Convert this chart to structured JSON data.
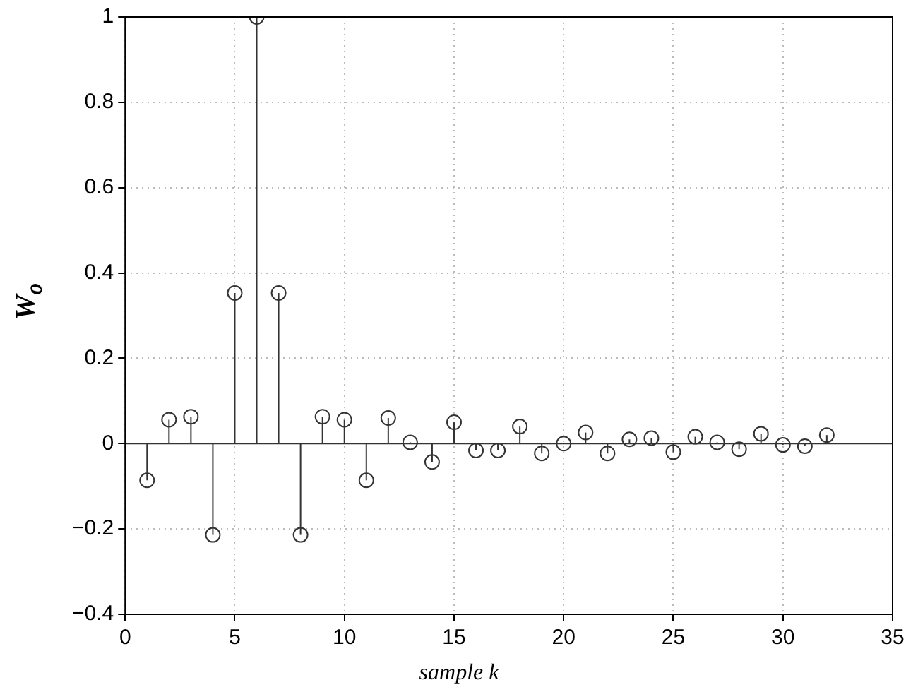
{
  "chart_data": {
    "type": "lollipop",
    "xlabel": "sample k",
    "ylabel": "W$_{o}$",
    "x": [
      1,
      2,
      3,
      4,
      5,
      6,
      7,
      8,
      9,
      10,
      11,
      12,
      13,
      14,
      15,
      16,
      17,
      18,
      19,
      20,
      21,
      22,
      23,
      24,
      25,
      26,
      27,
      28,
      29,
      30,
      31,
      32
    ],
    "series": [
      {
        "color": "#333333",
        "values": [
          -0.086,
          0.056,
          0.063,
          -0.214,
          0.353,
          1,
          0.353,
          -0.214,
          0.063,
          0.056,
          -0.086,
          0.06,
          0.003,
          -0.043,
          0.05,
          -0.016,
          -0.016,
          0.04,
          -0.023,
          0,
          0.026,
          -0.023,
          0.01,
          0.013,
          -0.02,
          0.016,
          0.003,
          -0.013,
          0.023,
          -0.003,
          -0.006,
          0.02
        ]
      }
    ],
    "xlim": [
      0,
      35
    ],
    "xticks": [
      0,
      5,
      10,
      15,
      20,
      25,
      30,
      35
    ],
    "ylim": [
      -0.4,
      1
    ],
    "yticks": [
      {
        "value": -0.4,
        "label": "−0.4"
      },
      {
        "value": -0.2,
        "label": "−0.2"
      },
      0,
      0.2,
      0.4,
      0.6,
      0.8,
      1
    ],
    "grid": true,
    "marker": "circle",
    "legend": false
  }
}
